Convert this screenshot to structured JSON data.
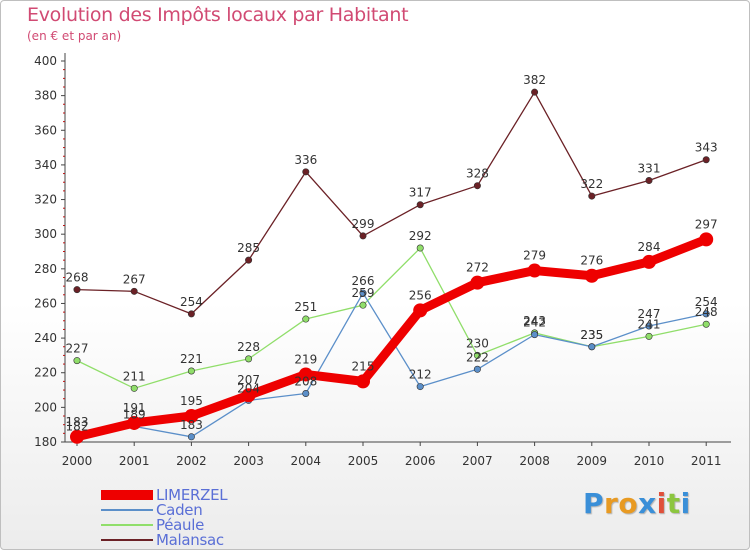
{
  "chart_data": {
    "type": "line",
    "title": "Evolution des Impôts locaux par Habitant",
    "subtitle": "(en € et par an)",
    "xlabel": "",
    "ylabel": "",
    "x": [
      "2000",
      "2001",
      "2002",
      "2003",
      "2004",
      "2005",
      "2006",
      "2007",
      "2008",
      "2009",
      "2010",
      "2011"
    ],
    "ylim": [
      180,
      400
    ],
    "yticks": [
      180,
      200,
      220,
      240,
      260,
      280,
      300,
      320,
      340,
      360,
      380,
      400
    ],
    "grid": false,
    "legend_position": "bottom-left",
    "series": [
      {
        "name": "LIMERZEL",
        "color": "#ee0000",
        "values": [
          183,
          191,
          195,
          207,
          219,
          215,
          256,
          272,
          279,
          276,
          284,
          297
        ]
      },
      {
        "name": "Caden",
        "color": "#5b8fc9",
        "values": [
          182,
          189,
          183,
          204,
          208,
          266,
          212,
          222,
          242,
          235,
          247,
          254
        ]
      },
      {
        "name": "Péaule",
        "color": "#90de6a",
        "values": [
          227,
          211,
          221,
          228,
          251,
          259,
          292,
          230,
          243,
          235,
          241,
          248
        ]
      },
      {
        "name": "Malansac",
        "color": "#6b2126",
        "values": [
          268,
          267,
          254,
          285,
          336,
          299,
          317,
          328,
          382,
          322,
          331,
          343
        ]
      }
    ]
  },
  "brand": {
    "letters": [
      "P",
      "r",
      "o",
      "x",
      "i",
      "t",
      "i"
    ],
    "colors": [
      "#3a8fd8",
      "#e89a22",
      "#e89a22",
      "#3a8fd8",
      "#e0503a",
      "#8cc63f",
      "#3a8fd8"
    ]
  }
}
